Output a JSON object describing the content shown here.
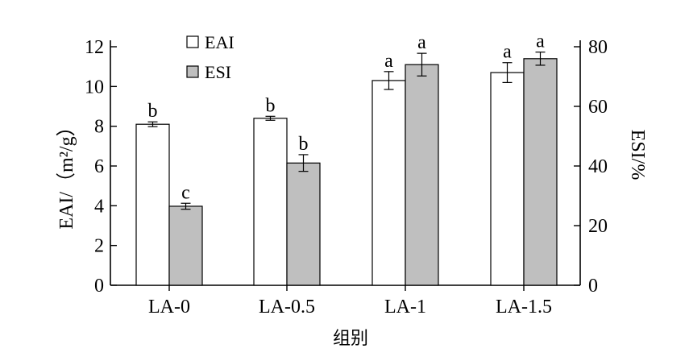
{
  "chart_data": {
    "type": "bar",
    "categories": [
      "LA-0",
      "LA-0.5",
      "LA-1",
      "LA-1.5"
    ],
    "xlabel": "组别",
    "ylabel": "EAI/（m²/g）",
    "y2label": "ESI/%",
    "ylim": [
      0,
      12
    ],
    "y2lim": [
      0,
      80
    ],
    "yticks": [
      0,
      2,
      4,
      6,
      8,
      10,
      12
    ],
    "y2ticks": [
      0,
      20,
      40,
      60,
      80
    ],
    "legend_position": "top-left",
    "grid": false,
    "series": [
      {
        "name": "EAI",
        "axis": "left",
        "color": "#ffffff",
        "values": [
          8.1,
          8.4,
          10.3,
          10.7
        ],
        "errors": [
          0.12,
          0.1,
          0.45,
          0.5
        ],
        "labels": [
          "b",
          "b",
          "a",
          "a"
        ]
      },
      {
        "name": "ESI",
        "axis": "right",
        "color": "#bfbfbf",
        "values": [
          26.5,
          41,
          74,
          76
        ],
        "errors": [
          1,
          2.8,
          3.8,
          2.2
        ],
        "labels": [
          "c",
          "b",
          "a",
          "a"
        ]
      }
    ]
  }
}
